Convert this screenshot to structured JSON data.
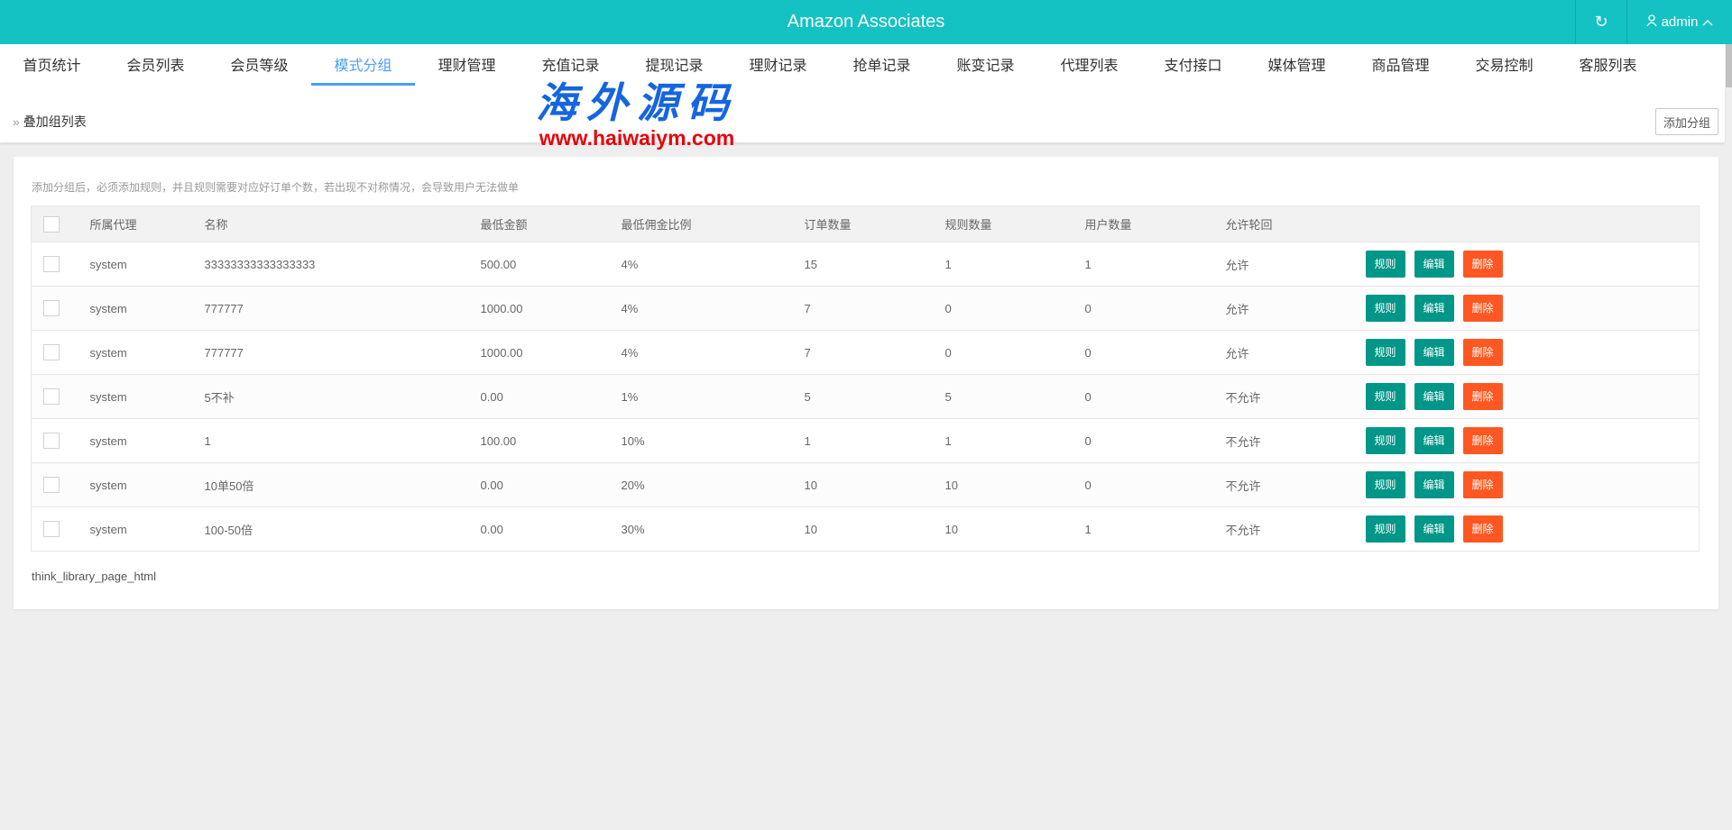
{
  "header": {
    "title": "Amazon Associates",
    "user": "admin",
    "refresh_icon": "refresh-icon",
    "user_icon": "user-icon",
    "bg_color": "#14c2c3"
  },
  "nav": {
    "items": [
      "首页统计",
      "会员列表",
      "会员等级",
      "模式分组",
      "理财管理",
      "充值记录",
      "提现记录",
      "理财记录",
      "抢单记录",
      "账变记录",
      "代理列表",
      "支付接口",
      "媒体管理",
      "商品管理",
      "交易控制",
      "客服列表"
    ],
    "active": "模式分组"
  },
  "breadcrumb": "叠加组列表",
  "add_button": "添加分组",
  "watermark": {
    "logo": "海外源码",
    "url": "www.haiwaiym.com"
  },
  "note": "添加分组后，必须添加规则，并且规则需要对应好订单个数，若出现不对称情况，会导致用户无法做单",
  "table": {
    "columns": [
      "所属代理",
      "名称",
      "最低金额",
      "最低佣金比例",
      "订单数量",
      "规则数量",
      "用户数量",
      "允许轮回"
    ],
    "rows": [
      [
        "system",
        "33333333333333333",
        "500.00",
        "4%",
        "15",
        "1",
        "1",
        "允许"
      ],
      [
        "system",
        "777777",
        "1000.00",
        "4%",
        "7",
        "0",
        "0",
        "允许"
      ],
      [
        "system",
        "777777",
        "1000.00",
        "4%",
        "7",
        "0",
        "0",
        "允许"
      ],
      [
        "system",
        "5不补",
        "0.00",
        "1%",
        "5",
        "5",
        "0",
        "不允许"
      ],
      [
        "system",
        "1",
        "100.00",
        "10%",
        "1",
        "1",
        "0",
        "不允许"
      ],
      [
        "system",
        "10单50倍",
        "0.00",
        "20%",
        "10",
        "10",
        "0",
        "不允许"
      ],
      [
        "system",
        "100-50倍",
        "0.00",
        "30%",
        "10",
        "10",
        "1",
        "不允许"
      ]
    ],
    "actions": {
      "rules": "规则",
      "edit": "编辑",
      "delete": "删除"
    }
  },
  "footer": "think_library_page_html"
}
